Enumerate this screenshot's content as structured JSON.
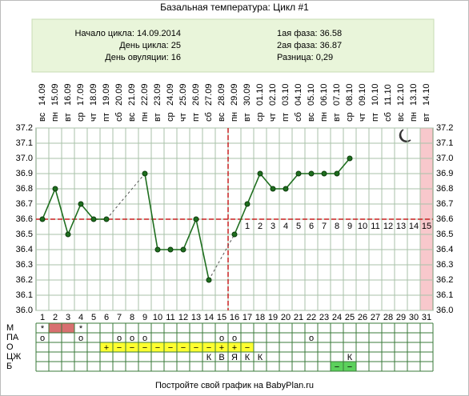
{
  "chart_data": {
    "type": "line",
    "title": "Базальная температура: Цикл #1",
    "info_left": [
      "Начало цикла: 14.09.2014",
      "День цикла: 25",
      "День овуляции: 16"
    ],
    "info_right": [
      "1ая фаза: 36.58",
      "2ая фаза: 36.87",
      "Разница: 0,29"
    ],
    "weekdays": [
      "вс",
      "пн",
      "вт",
      "ср",
      "чт",
      "пт",
      "сб",
      "вс",
      "пн",
      "вт",
      "ср",
      "чт",
      "пт",
      "сб",
      "вс",
      "пн",
      "вт",
      "ср",
      "чт",
      "пт",
      "сб",
      "вс",
      "пн",
      "вт",
      "ср",
      "чт",
      "пт",
      "сб",
      "вс",
      "пн",
      "вт"
    ],
    "dates": [
      "14.09",
      "15.09",
      "16.09",
      "17.09",
      "18.09",
      "19.09",
      "20.09",
      "21.09",
      "22.09",
      "23.09",
      "24.09",
      "25.09",
      "26.09",
      "27.09",
      "28.09",
      "29.09",
      "30.09",
      "01.10",
      "02.10",
      "03.10",
      "04.10",
      "05.10",
      "06.10",
      "07.10",
      "08.10",
      "09.10",
      "10.10",
      "11.10",
      "12.10",
      "13.10",
      "14.10"
    ],
    "categories": [
      1,
      2,
      3,
      4,
      5,
      6,
      7,
      8,
      9,
      10,
      11,
      12,
      13,
      14,
      15,
      16,
      17,
      18,
      19,
      20,
      21,
      22,
      23,
      24,
      25,
      26,
      27,
      28,
      29,
      30,
      31
    ],
    "values": [
      36.6,
      36.8,
      36.5,
      36.7,
      36.6,
      36.6,
      null,
      null,
      36.9,
      36.4,
      36.4,
      36.4,
      36.6,
      36.2,
      null,
      36.5,
      36.7,
      36.9,
      36.8,
      36.8,
      36.9,
      36.9,
      36.9,
      36.9,
      37.0,
      null,
      null,
      null,
      null,
      null,
      null
    ],
    "color": "#1e6e1e",
    "ylim": [
      36.0,
      37.2
    ],
    "yticks": [
      {
        "value": 36.0,
        "label": "36.0"
      },
      36.1,
      36.2,
      36.3,
      36.4,
      36.5,
      36.6,
      36.7,
      36.8,
      36.9,
      {
        "value": 37.0,
        "label": "37.0"
      },
      37.1,
      37.2
    ],
    "grid": true,
    "coverline": 36.6,
    "ovulation_day": 16,
    "current_day": 25,
    "forecast_period_days": [
      31
    ],
    "luteal_numbers": [
      null,
      null,
      null,
      null,
      null,
      null,
      null,
      null,
      null,
      null,
      null,
      null,
      null,
      null,
      null,
      null,
      1,
      2,
      3,
      4,
      5,
      6,
      7,
      8,
      9,
      10,
      11,
      12,
      13,
      14,
      15
    ],
    "row_labels": [
      "М",
      "ПА",
      "О",
      "ЦЖ",
      "Б"
    ],
    "m_row": [
      "*",
      null,
      null,
      "*",
      null,
      null,
      null,
      null,
      null,
      null,
      null,
      null,
      null,
      null,
      null,
      null,
      null,
      null,
      null,
      null,
      null,
      null,
      null,
      null,
      null,
      null,
      null,
      null,
      null,
      null,
      null
    ],
    "m_fill_days": [
      2,
      3
    ],
    "pa_row": [
      "о",
      null,
      null,
      "о",
      null,
      null,
      "о",
      "о",
      "о",
      null,
      null,
      null,
      null,
      null,
      "о",
      "о",
      null,
      null,
      null,
      null,
      null,
      "о",
      null,
      null,
      null,
      null,
      null,
      null,
      null,
      null,
      null
    ],
    "o_row": [
      null,
      null,
      null,
      null,
      null,
      "+",
      "−",
      "−",
      "−",
      "−",
      "−",
      "−",
      "−",
      "−",
      "+",
      "+",
      "−",
      null,
      null,
      null,
      null,
      null,
      null,
      null,
      null,
      null,
      null,
      null,
      null,
      null,
      null
    ],
    "czh_row": [
      null,
      null,
      null,
      null,
      null,
      null,
      null,
      null,
      null,
      null,
      null,
      null,
      null,
      "К",
      "В",
      "Я",
      "К",
      "К",
      null,
      null,
      null,
      null,
      null,
      null,
      "К",
      null,
      null,
      null,
      null,
      null,
      null
    ],
    "b_row": [
      null,
      null,
      null,
      null,
      null,
      null,
      null,
      null,
      null,
      null,
      null,
      null,
      null,
      null,
      null,
      null,
      null,
      null,
      null,
      null,
      null,
      null,
      null,
      "−",
      "−",
      null,
      null,
      null,
      null,
      null,
      null
    ],
    "footer": "Постройте свой график на BabyPlan.ru"
  }
}
